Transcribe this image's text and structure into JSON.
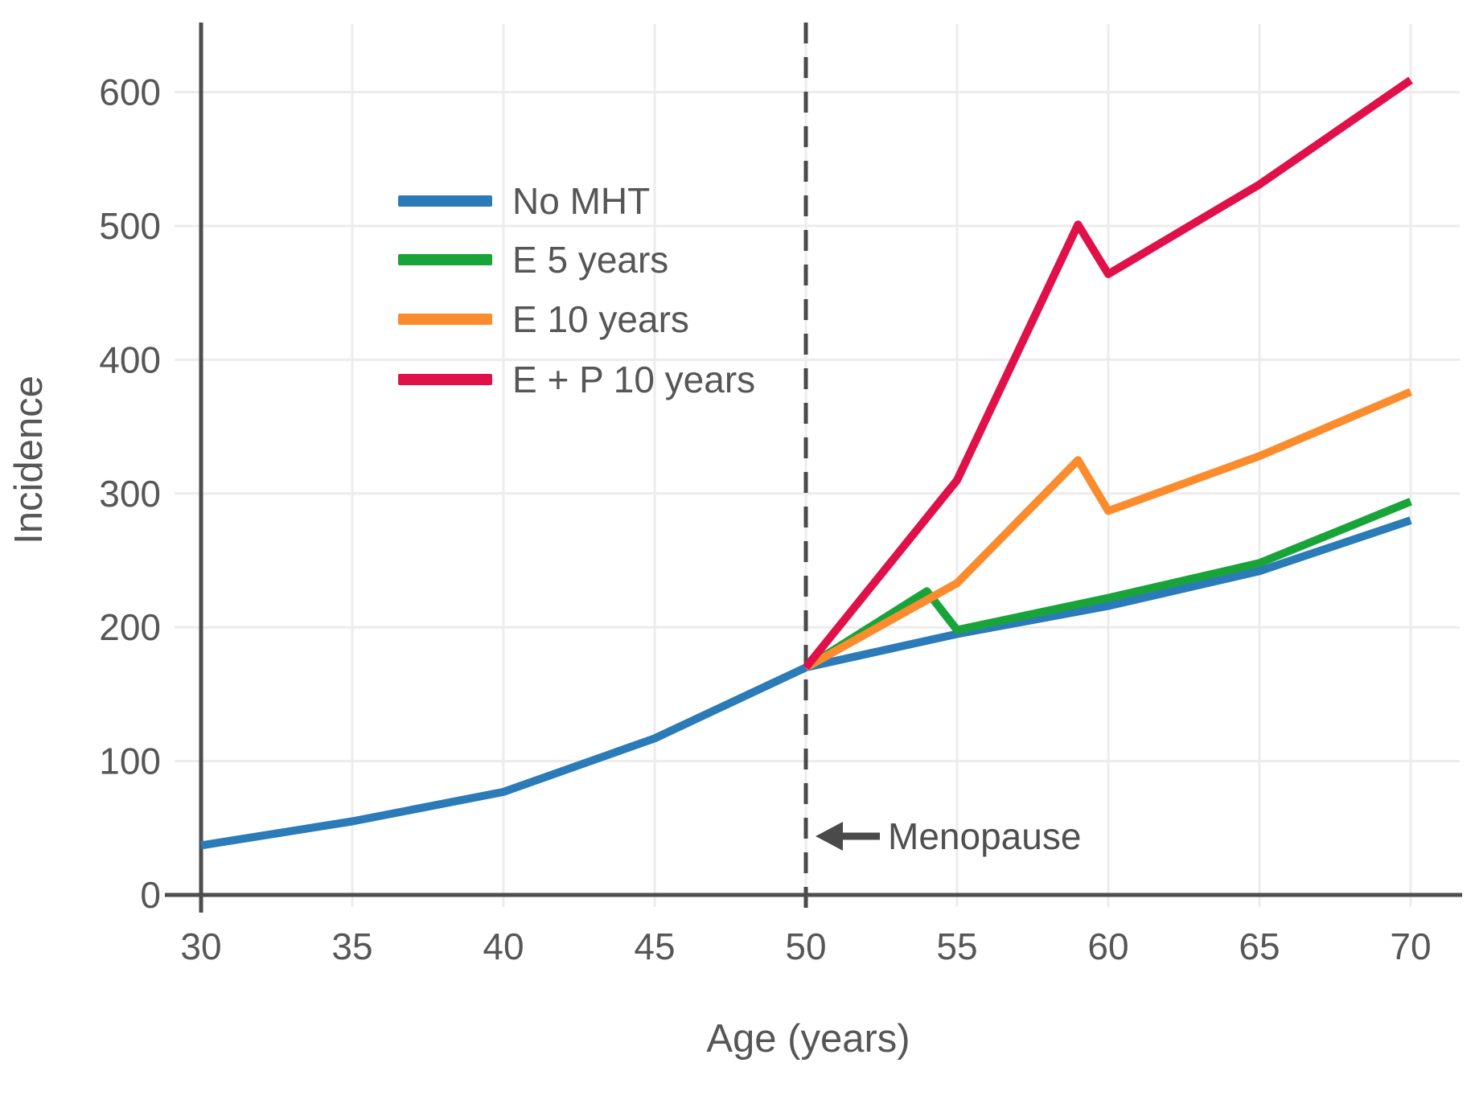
{
  "chart_data": {
    "type": "line",
    "title": "",
    "xlabel": "Age (years)",
    "ylabel": "Incidence",
    "x_ticks": [
      30,
      35,
      40,
      45,
      50,
      55,
      60,
      65,
      70
    ],
    "y_ticks": [
      0,
      100,
      200,
      300,
      400,
      500,
      600
    ],
    "xlim": [
      30,
      71.5
    ],
    "ylim": [
      0,
      650
    ],
    "grid": true,
    "legend_position": "upper-left-inside",
    "series": [
      {
        "name": "No MHT",
        "color": "#2b7bb9",
        "points": [
          [
            30,
            37
          ],
          [
            35,
            55
          ],
          [
            40,
            77
          ],
          [
            45,
            117
          ],
          [
            50,
            170
          ],
          [
            55,
            195
          ],
          [
            60,
            216
          ],
          [
            65,
            242
          ],
          [
            70,
            280
          ]
        ]
      },
      {
        "name": "E 5 years",
        "color": "#19a43a",
        "points": [
          [
            50,
            170
          ],
          [
            54,
            227
          ],
          [
            55,
            198
          ],
          [
            60,
            222
          ],
          [
            65,
            248
          ],
          [
            70,
            294
          ]
        ]
      },
      {
        "name": "E 10 years",
        "color": "#fb8c2e",
        "points": [
          [
            50,
            170
          ],
          [
            55,
            233
          ],
          [
            59,
            325
          ],
          [
            60,
            287
          ],
          [
            65,
            328
          ],
          [
            70,
            376
          ]
        ]
      },
      {
        "name": "E + P 10 years",
        "color": "#e01049",
        "points": [
          [
            50,
            170
          ],
          [
            55,
            310
          ],
          [
            59,
            501
          ],
          [
            60,
            464
          ],
          [
            65,
            531
          ],
          [
            70,
            609
          ]
        ]
      }
    ],
    "annotations": [
      {
        "label": "Menopause",
        "points_to_x": 50,
        "arrow": "left"
      }
    ],
    "reference_line": {
      "x": 50,
      "style": "dashed"
    }
  },
  "colors": {
    "background": "#ffffff",
    "axis": "#4d4d4d",
    "grid": "#ececec",
    "text": "#565656",
    "dashed_line": "#4a4a4a",
    "arrow": "#4a4a4a"
  }
}
